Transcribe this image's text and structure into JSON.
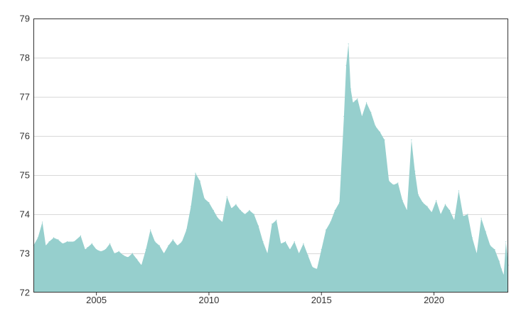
{
  "chart_data": {
    "type": "area",
    "title": "",
    "xlabel": "",
    "ylabel": "",
    "xlim": [
      2002.2,
      2023.3
    ],
    "ylim": [
      72,
      79
    ],
    "x_ticks": [
      2005,
      2010,
      2015,
      2020
    ],
    "y_ticks": [
      72,
      73,
      74,
      75,
      76,
      77,
      78,
      79
    ],
    "grid": "horizontal",
    "legend": "none",
    "colors": {
      "area": "#96cfcd",
      "grid": "#d9d9d9",
      "frame": "#333333",
      "text": "#333333"
    },
    "series": [
      {
        "x": [
          2002.2,
          2002.4,
          2002.6,
          2002.75,
          2002.9,
          2003.1,
          2003.3,
          2003.5,
          2003.7,
          2004.0,
          2004.3,
          2004.5,
          2004.6,
          2004.8,
          2005.0,
          2005.2,
          2005.4,
          2005.6,
          2005.8,
          2006.0,
          2006.2,
          2006.4,
          2006.6,
          2006.8,
          2007.0,
          2007.2,
          2007.4,
          2007.6,
          2007.8,
          2008.0,
          2008.2,
          2008.4,
          2008.6,
          2008.8,
          2009.0,
          2009.2,
          2009.4,
          2009.6,
          2009.8,
          2010.0,
          2010.2,
          2010.4,
          2010.6,
          2010.8,
          2011.0,
          2011.2,
          2011.4,
          2011.6,
          2011.8,
          2012.0,
          2012.2,
          2012.4,
          2012.6,
          2012.8,
          2013.0,
          2013.2,
          2013.4,
          2013.6,
          2013.8,
          2014.0,
          2014.2,
          2014.4,
          2014.6,
          2014.8,
          2015.0,
          2015.2,
          2015.4,
          2015.6,
          2015.8,
          2016.0,
          2016.1,
          2016.2,
          2016.3,
          2016.4,
          2016.5,
          2016.6,
          2016.8,
          2017.0,
          2017.2,
          2017.4,
          2017.6,
          2017.8,
          2018.0,
          2018.2,
          2018.4,
          2018.6,
          2018.8,
          2019.0,
          2019.15,
          2019.3,
          2019.5,
          2019.7,
          2019.9,
          2020.1,
          2020.3,
          2020.5,
          2020.7,
          2020.9,
          2021.1,
          2021.3,
          2021.5,
          2021.7,
          2021.9,
          2022.1,
          2022.3,
          2022.5,
          2022.7,
          2022.9,
          2023.0,
          2023.1,
          2023.2,
          2023.3
        ],
        "values": [
          73.2,
          73.4,
          73.8,
          73.2,
          73.3,
          73.4,
          73.35,
          73.25,
          73.3,
          73.3,
          73.45,
          73.1,
          73.15,
          73.25,
          73.1,
          73.05,
          73.1,
          73.25,
          73.0,
          73.05,
          72.95,
          72.9,
          73.0,
          72.85,
          72.7,
          73.1,
          73.6,
          73.3,
          73.2,
          73.0,
          73.2,
          73.35,
          73.2,
          73.3,
          73.6,
          74.2,
          75.05,
          74.85,
          74.4,
          74.3,
          74.1,
          73.9,
          73.8,
          74.45,
          74.15,
          74.25,
          74.1,
          74.0,
          74.1,
          74.0,
          73.7,
          73.3,
          73.0,
          73.75,
          73.85,
          73.25,
          73.3,
          73.1,
          73.3,
          73.0,
          73.25,
          72.95,
          72.65,
          72.6,
          73.1,
          73.6,
          73.8,
          74.1,
          74.3,
          76.5,
          77.8,
          78.35,
          77.2,
          76.85,
          76.9,
          76.95,
          76.5,
          76.85,
          76.6,
          76.25,
          76.1,
          75.9,
          74.85,
          74.75,
          74.8,
          74.35,
          74.1,
          75.9,
          75.1,
          74.5,
          74.3,
          74.2,
          74.05,
          74.35,
          74.0,
          74.25,
          74.1,
          73.85,
          74.6,
          73.95,
          74.0,
          73.4,
          73.0,
          73.9,
          73.55,
          73.2,
          73.1,
          72.8,
          72.6,
          72.45,
          73.3,
          72.7
        ]
      }
    ]
  }
}
